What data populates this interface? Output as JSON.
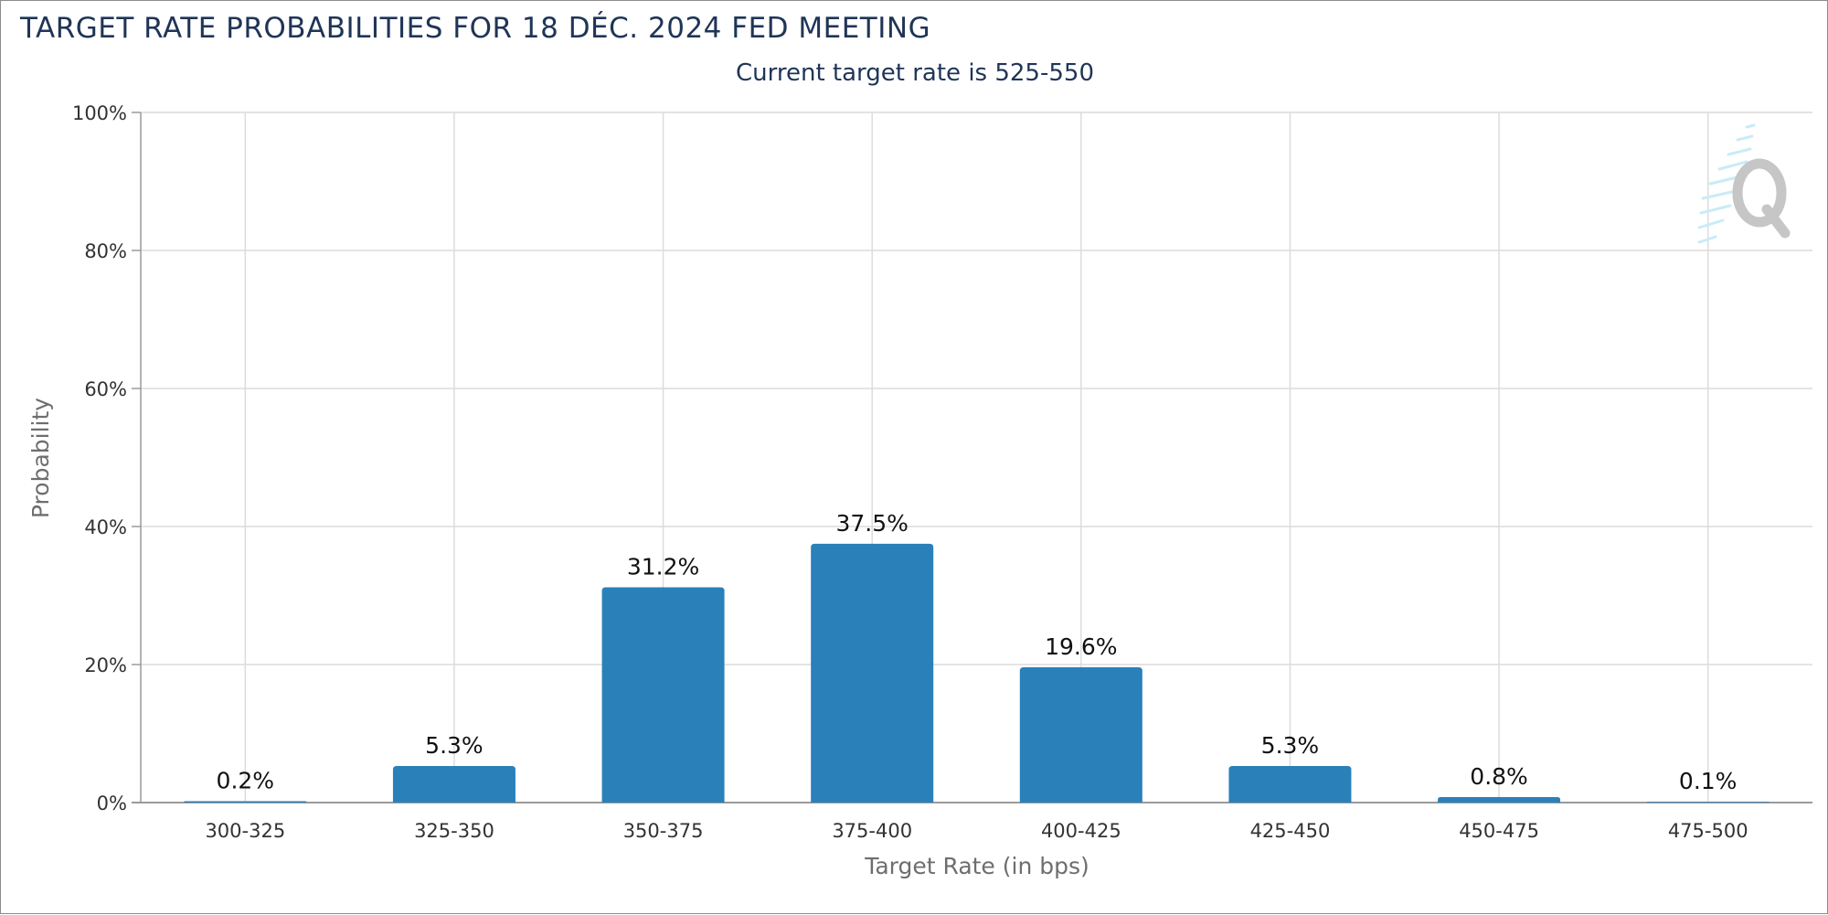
{
  "title": "TARGET RATE PROBABILITIES FOR 18 DÉC. 2024 FED MEETING",
  "subtitle": "Current target rate is 525-550",
  "chart_data": {
    "type": "bar",
    "title": "TARGET RATE PROBABILITIES FOR 18 DÉC. 2024 FED MEETING",
    "subtitle": "Current target rate is 525-550",
    "xlabel": "Target Rate (in bps)",
    "ylabel": "Probability",
    "ylim": [
      0,
      100
    ],
    "y_ticks": [
      "0%",
      "20%",
      "40%",
      "60%",
      "80%",
      "100%"
    ],
    "y_tick_values": [
      0,
      20,
      40,
      60,
      80,
      100
    ],
    "categories": [
      "300-325",
      "325-350",
      "350-375",
      "375-400",
      "400-425",
      "425-450",
      "450-475",
      "475-500"
    ],
    "values": [
      0.2,
      5.3,
      31.2,
      37.5,
      19.6,
      5.3,
      0.8,
      0.1
    ],
    "data_labels": [
      "0.2%",
      "5.3%",
      "31.2%",
      "37.5%",
      "19.6%",
      "5.3%",
      "0.8%",
      "0.1%"
    ],
    "bar_color": "#2a80b9",
    "grid": true,
    "legend": "none"
  },
  "colors": {
    "title": "#1f3557",
    "axis_label": "#6e6e6e",
    "tick": "#333333",
    "grid": "#dcdcdc"
  },
  "watermark_icon": "quikstrike-q-logo"
}
